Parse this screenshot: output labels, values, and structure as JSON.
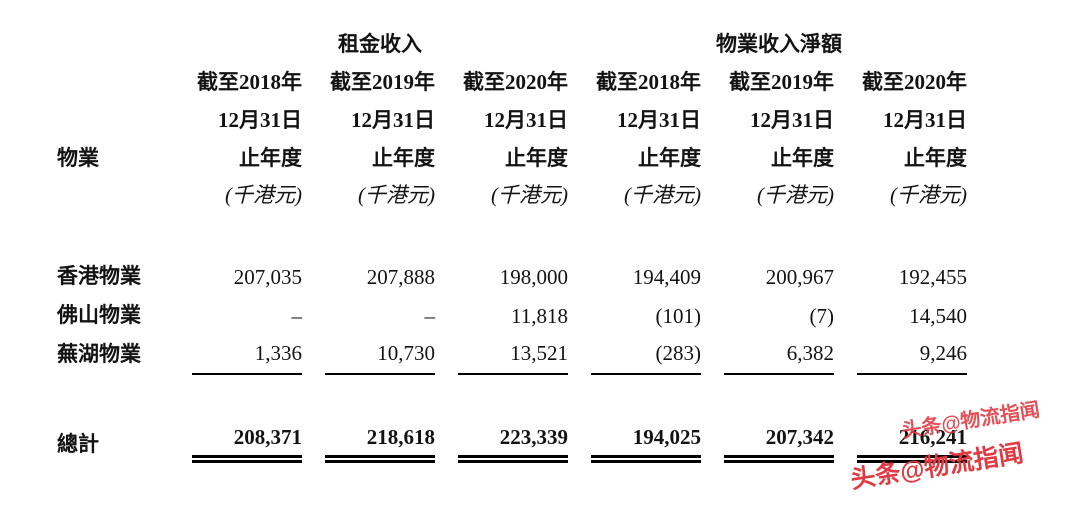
{
  "table": {
    "corner_label": "物業",
    "groups": [
      {
        "label": "租金收入"
      },
      {
        "label": "物業收入淨額"
      }
    ],
    "column_headers": {
      "line1": [
        "截至2018年",
        "截至2019年",
        "截至2020年",
        "截至2018年",
        "截至2019年",
        "截至2020年"
      ],
      "line2": [
        "12月31日",
        "12月31日",
        "12月31日",
        "12月31日",
        "12月31日",
        "12月31日"
      ],
      "line3": [
        "止年度",
        "止年度",
        "止年度",
        "止年度",
        "止年度",
        "止年度"
      ],
      "line4": [
        "(千港元)",
        "(千港元)",
        "(千港元)",
        "(千港元)",
        "(千港元)",
        "(千港元)"
      ]
    },
    "rows": [
      {
        "label": "香港物業",
        "values": [
          "207,035",
          "207,888",
          "198,000",
          "194,409",
          "200,967",
          "192,455"
        ]
      },
      {
        "label": "佛山物業",
        "values": [
          "–",
          "–",
          "11,818",
          "(101)",
          "(7)",
          "14,540"
        ]
      },
      {
        "label": "蕪湖物業",
        "values": [
          "1,336",
          "10,730",
          "13,521",
          "(283)",
          "6,382",
          "9,246"
        ]
      }
    ],
    "total_row": {
      "label": "總計",
      "values": [
        "208,371",
        "218,618",
        "223,339",
        "194,025",
        "207,342",
        "216,241"
      ]
    }
  },
  "watermark": {
    "line1": "头条@物流指闻",
    "line2": "头条@物流指闻",
    "color": "#e03a42"
  }
}
